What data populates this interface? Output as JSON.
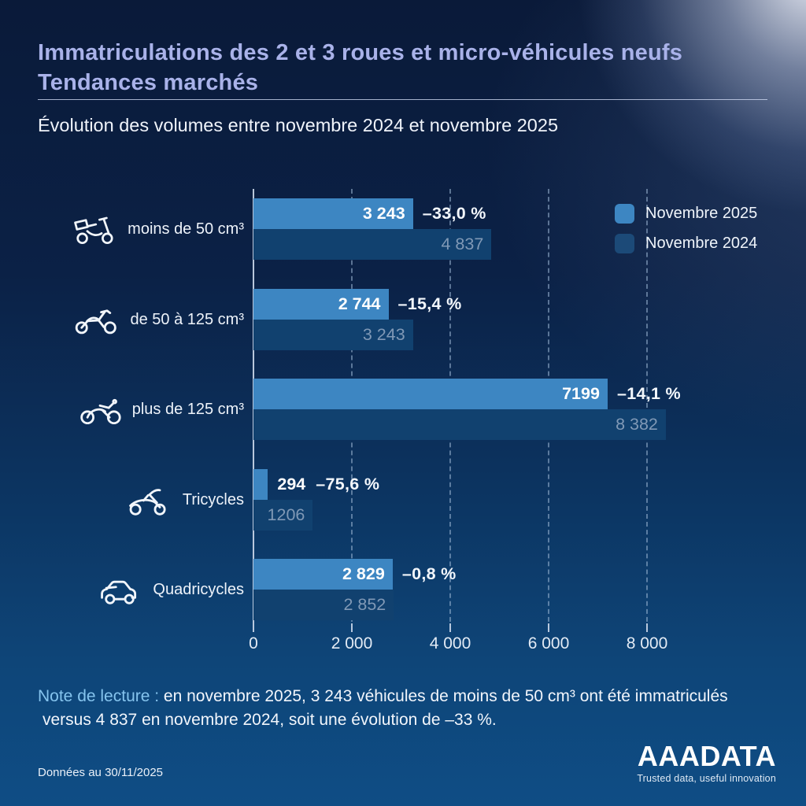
{
  "header": {
    "title_line1": "Immatriculations des 2 et 3 roues et micro-véhicules neufs",
    "title_line2": "Tendances marchés",
    "subtitle": "Évolution des volumes entre novembre 2024 et novembre 2025"
  },
  "legend": {
    "items": [
      {
        "label": "Novembre 2025",
        "color": "#3d86c2"
      },
      {
        "label": "Novembre 2024",
        "color": "#1c4a78"
      }
    ]
  },
  "chart_data": {
    "type": "bar",
    "orientation": "horizontal",
    "title": "Évolution des volumes entre novembre 2024 et novembre 2025",
    "categories": [
      "moins de 50 cm³",
      "de 50 à 125 cm³",
      "plus de 125 cm³",
      "Tricycles",
      "Quadricycles"
    ],
    "icons": [
      "scooter",
      "motorcycle",
      "large-motorcycle",
      "tricycle",
      "quadricycle"
    ],
    "series": [
      {
        "name": "Novembre 2025",
        "color": "#3d86c2",
        "values": [
          3243,
          2744,
          7199,
          294,
          2829
        ],
        "value_labels": [
          "3 243",
          "2 744",
          "7199",
          "294",
          "2 829"
        ]
      },
      {
        "name": "Novembre 2024",
        "color": "#11416f",
        "values": [
          4837,
          3243,
          8382,
          1206,
          2852
        ],
        "value_labels": [
          "4 837",
          "3 243",
          "8 382",
          "1206",
          "2 852"
        ]
      }
    ],
    "change_labels": [
      "–33,0 %",
      "–15,4 %",
      "–14,1 %",
      "–75,6 %",
      "–0,8 %"
    ],
    "x_ticks": [
      {
        "value": 0,
        "label": "0"
      },
      {
        "value": 2000,
        "label": "2 000"
      },
      {
        "value": 4000,
        "label": "4 000"
      },
      {
        "value": 6000,
        "label": "6 000"
      },
      {
        "value": 8000,
        "label": "8 000"
      }
    ],
    "xlim": [
      0,
      8000
    ],
    "grid": "vertical-dashed",
    "legend_position": "top-right"
  },
  "note": {
    "prefix": "Note de lecture :",
    "line1": " en novembre 2025, 3 243 véhicules de moins de 50 cm³ ont été immatriculés",
    "line2": "versus 4 837 en novembre 2024, soit une évolution de –33 %."
  },
  "footer": {
    "data_date": "Données au 30/11/2025",
    "logo": "AAADATA",
    "tagline": "Trusted data, useful innovation"
  }
}
